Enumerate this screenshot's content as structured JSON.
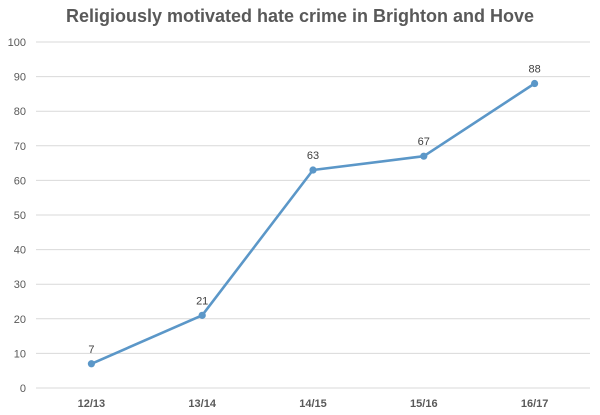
{
  "chart_data": {
    "type": "line",
    "title": "Religiously motivated hate crime in Brighton and Hove",
    "categories": [
      "12/13",
      "13/14",
      "14/15",
      "15/16",
      "16/17"
    ],
    "series": [
      {
        "values": [
          7,
          21,
          63,
          67,
          88
        ],
        "color": "#5b97c8"
      }
    ],
    "data_labels": [
      "7",
      "21",
      "63",
      "67",
      "88"
    ],
    "y_ticks": [
      0,
      10,
      20,
      30,
      40,
      50,
      60,
      70,
      80,
      90,
      100
    ],
    "ylim": [
      0,
      100
    ],
    "grid": true,
    "gridline_color": "#d9d9d9",
    "legend": false,
    "xlabel": "",
    "ylabel": ""
  }
}
